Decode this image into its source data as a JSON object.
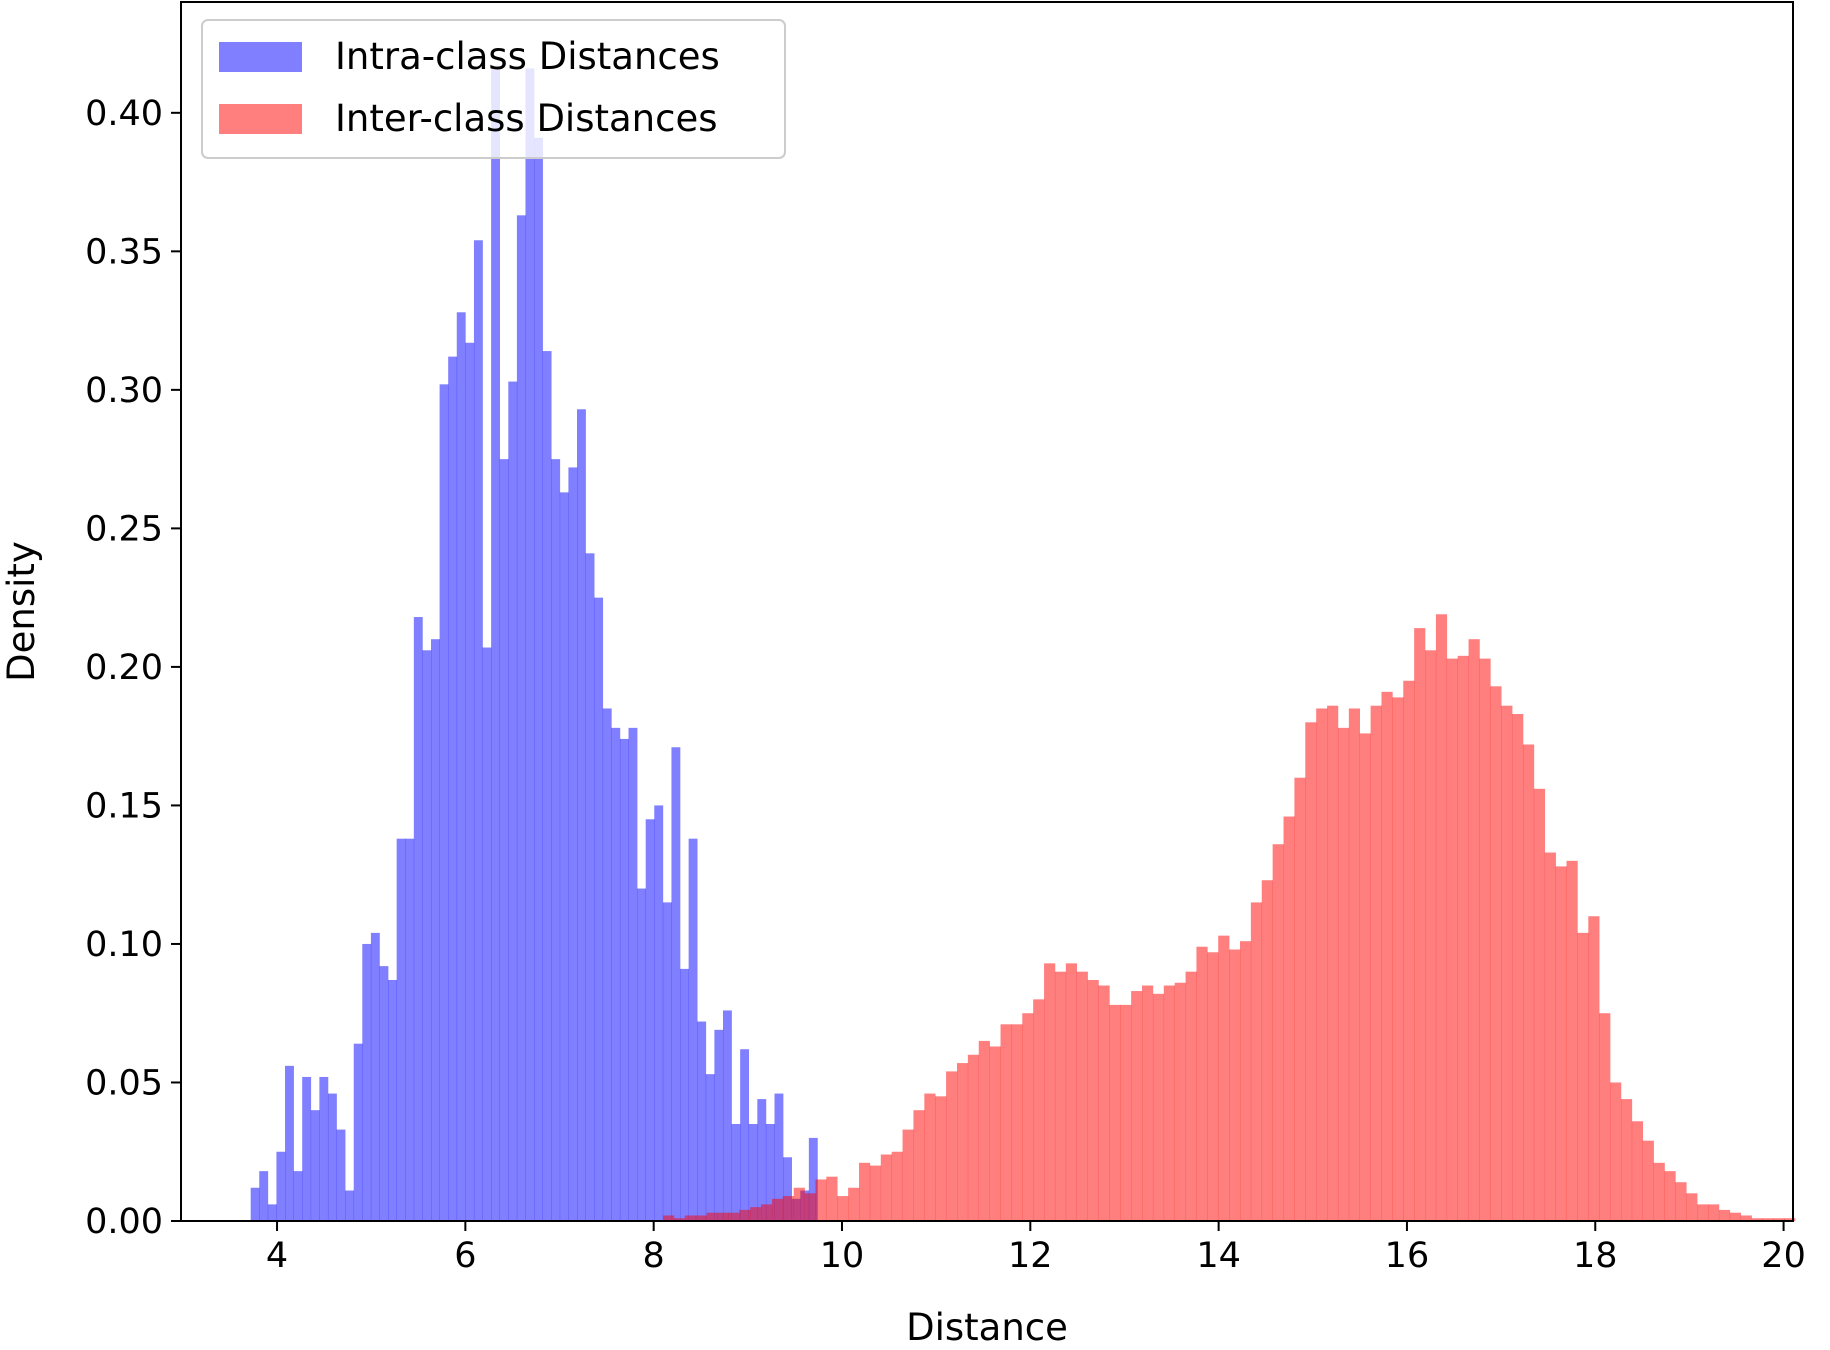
{
  "chart_data": {
    "type": "histogram",
    "xlabel": "Distance",
    "ylabel": "Density",
    "xlim": [
      2.98,
      20.1
    ],
    "ylim": [
      0,
      0.44
    ],
    "x_ticks": [
      4,
      6,
      8,
      10,
      12,
      14,
      16,
      18,
      20
    ],
    "y_ticks": [
      0.0,
      0.05,
      0.1,
      0.15,
      0.2,
      0.25,
      0.3,
      0.35,
      0.4
    ],
    "y_tick_labels": [
      "0.00",
      "0.05",
      "0.10",
      "0.15",
      "0.20",
      "0.25",
      "0.30",
      "0.35",
      "0.40"
    ],
    "legend": {
      "position": "upper-left"
    },
    "series": [
      {
        "name": "Intra-class Distances",
        "color": "#0000ff",
        "opacity": 0.5,
        "bin_start": 3.72,
        "bin_width": 0.0912,
        "values": [
          0.012,
          0.018,
          0.006,
          0.025,
          0.056,
          0.018,
          0.052,
          0.04,
          0.052,
          0.046,
          0.033,
          0.011,
          0.064,
          0.1,
          0.104,
          0.092,
          0.087,
          0.138,
          0.138,
          0.218,
          0.206,
          0.21,
          0.302,
          0.312,
          0.328,
          0.317,
          0.354,
          0.207,
          0.417,
          0.275,
          0.303,
          0.363,
          0.416,
          0.391,
          0.314,
          0.275,
          0.263,
          0.272,
          0.293,
          0.241,
          0.225,
          0.185,
          0.178,
          0.174,
          0.178,
          0.12,
          0.145,
          0.15,
          0.115,
          0.171,
          0.091,
          0.138,
          0.072,
          0.053,
          0.069,
          0.076,
          0.035,
          0.062,
          0.035,
          0.044,
          0.035,
          0.046,
          0.023,
          0.008,
          0.011,
          0.03
        ]
      },
      {
        "name": "Inter-class Distances",
        "color": "#ff0000",
        "opacity": 0.5,
        "bin_start": 8.1,
        "bin_width": 0.1156,
        "values": [
          0.002,
          0.001,
          0.002,
          0.002,
          0.003,
          0.003,
          0.003,
          0.004,
          0.005,
          0.006,
          0.008,
          0.009,
          0.012,
          0.01,
          0.015,
          0.016,
          0.009,
          0.012,
          0.021,
          0.02,
          0.024,
          0.025,
          0.033,
          0.04,
          0.046,
          0.045,
          0.054,
          0.057,
          0.06,
          0.065,
          0.063,
          0.071,
          0.071,
          0.075,
          0.08,
          0.093,
          0.09,
          0.093,
          0.09,
          0.087,
          0.085,
          0.078,
          0.078,
          0.083,
          0.085,
          0.082,
          0.085,
          0.086,
          0.09,
          0.099,
          0.097,
          0.103,
          0.098,
          0.101,
          0.115,
          0.123,
          0.136,
          0.146,
          0.16,
          0.18,
          0.185,
          0.186,
          0.178,
          0.185,
          0.176,
          0.186,
          0.191,
          0.189,
          0.195,
          0.214,
          0.206,
          0.219,
          0.203,
          0.204,
          0.21,
          0.203,
          0.193,
          0.186,
          0.183,
          0.172,
          0.156,
          0.133,
          0.128,
          0.13,
          0.104,
          0.11,
          0.075,
          0.05,
          0.044,
          0.036,
          0.029,
          0.021,
          0.018,
          0.014,
          0.01,
          0.006,
          0.006,
          0.004,
          0.003,
          0.002,
          0.001,
          0.001,
          0.001,
          0.001
        ]
      }
    ]
  }
}
